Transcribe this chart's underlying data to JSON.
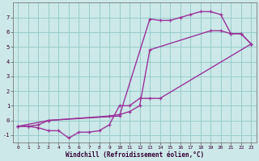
{
  "xlabel": "Windchill (Refroidissement éolien,°C)",
  "bg_color": "#cce8e8",
  "line_color": "#993399",
  "grid_color": "#99cccc",
  "xlim": [
    -0.5,
    23.5
  ],
  "ylim": [
    -1.5,
    8.0
  ],
  "yticks": [
    -1,
    0,
    1,
    2,
    3,
    4,
    5,
    6,
    7
  ],
  "xticks": [
    0,
    1,
    2,
    3,
    4,
    5,
    6,
    7,
    8,
    9,
    10,
    11,
    12,
    13,
    14,
    15,
    16,
    17,
    18,
    19,
    20,
    21,
    22,
    23
  ],
  "line1_x": [
    0,
    1,
    2,
    3,
    10,
    13,
    14,
    15,
    16,
    17,
    18,
    19,
    20,
    21,
    22,
    23
  ],
  "line1_y": [
    -0.4,
    -0.4,
    -0.3,
    0.0,
    0.3,
    6.9,
    6.8,
    6.8,
    7.0,
    7.2,
    7.4,
    7.4,
    7.2,
    5.9,
    5.9,
    5.2
  ],
  "line2_x": [
    0,
    1,
    2,
    3,
    4,
    5,
    6,
    7,
    8,
    9,
    10,
    11,
    12,
    13,
    14,
    23
  ],
  "line2_y": [
    -0.4,
    -0.4,
    -0.5,
    -0.7,
    -0.7,
    -1.2,
    -0.8,
    -0.8,
    -0.7,
    -0.3,
    1.0,
    1.0,
    1.5,
    1.5,
    1.5,
    5.2
  ],
  "line3_x": [
    0,
    3,
    9,
    10,
    11,
    12,
    13,
    19,
    20,
    21,
    22,
    23
  ],
  "line3_y": [
    -0.4,
    0.0,
    0.3,
    0.4,
    0.6,
    1.0,
    4.8,
    6.1,
    6.1,
    5.9,
    5.9,
    5.2
  ]
}
